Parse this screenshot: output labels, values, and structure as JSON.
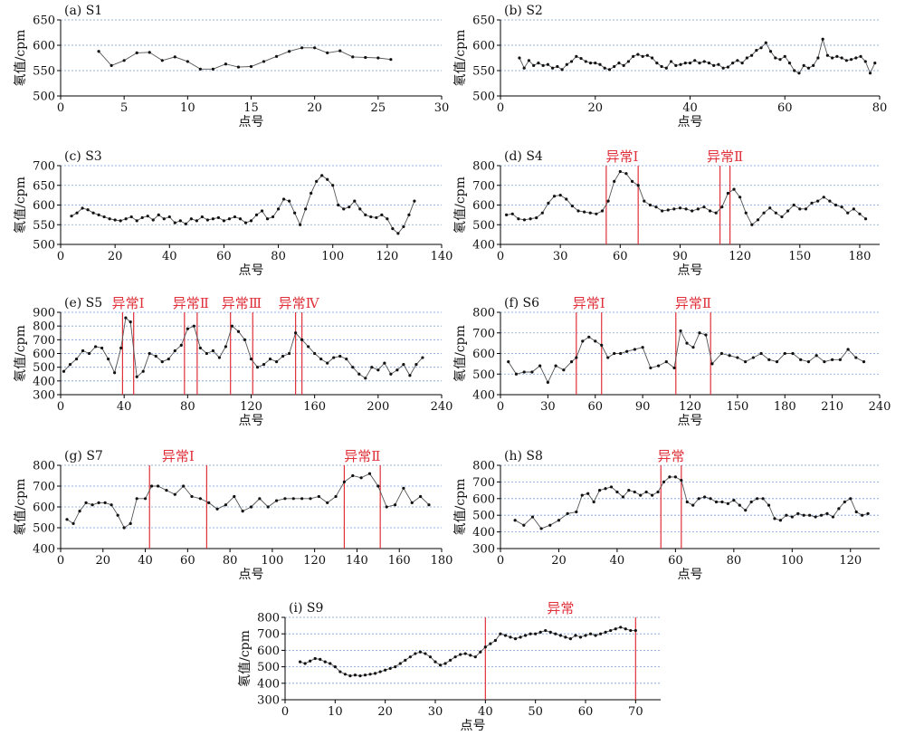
{
  "chart_data": [
    {
      "type": "line",
      "title": "(a) S1",
      "xlabel": "点号",
      "ylabel": "氡值/cpm",
      "xlim": [
        0,
        30
      ],
      "ylim": [
        500,
        650
      ],
      "xticks": [
        0,
        5,
        10,
        15,
        20,
        25,
        30
      ],
      "yticks": [
        500,
        550,
        600,
        650
      ],
      "grid": true,
      "x": [
        3,
        4,
        5,
        6,
        7,
        8,
        9,
        10,
        11,
        12,
        13,
        14,
        15,
        16,
        17,
        18,
        19,
        20,
        21,
        22,
        23,
        24,
        25,
        26
      ],
      "values": [
        588,
        560,
        570,
        585,
        586,
        570,
        577,
        568,
        553,
        553,
        563,
        557,
        558,
        568,
        578,
        588,
        595,
        595,
        585,
        589,
        577,
        576,
        575,
        572
      ],
      "anomalies": []
    },
    {
      "type": "line",
      "title": "(b) S2",
      "xlabel": "点号",
      "ylabel": "氡值/cpm",
      "xlim": [
        0,
        80
      ],
      "ylim": [
        500,
        650
      ],
      "xticks": [
        0,
        20,
        40,
        60,
        80
      ],
      "yticks": [
        500,
        550,
        600,
        650
      ],
      "grid": true,
      "x": [
        4,
        5,
        6,
        7,
        8,
        9,
        10,
        11,
        12,
        13,
        14,
        15,
        16,
        17,
        18,
        19,
        20,
        21,
        22,
        23,
        24,
        25,
        26,
        27,
        28,
        29,
        30,
        31,
        32,
        33,
        34,
        35,
        36,
        37,
        38,
        39,
        40,
        41,
        42,
        43,
        44,
        45,
        46,
        47,
        48,
        49,
        50,
        51,
        52,
        53,
        54,
        55,
        56,
        57,
        58,
        59,
        60,
        61,
        62,
        63,
        64,
        65,
        66,
        67,
        68,
        69,
        70,
        71,
        72,
        73,
        74,
        75,
        76,
        77,
        78,
        79
      ],
      "values": [
        575,
        555,
        570,
        560,
        565,
        560,
        562,
        555,
        558,
        552,
        562,
        568,
        578,
        574,
        568,
        565,
        565,
        562,
        555,
        552,
        558,
        565,
        560,
        568,
        578,
        582,
        578,
        580,
        575,
        565,
        558,
        555,
        568,
        560,
        562,
        565,
        565,
        570,
        565,
        568,
        565,
        560,
        562,
        555,
        557,
        565,
        570,
        565,
        575,
        580,
        590,
        595,
        605,
        588,
        575,
        572,
        578,
        565,
        550,
        545,
        560,
        555,
        560,
        575,
        612,
        580,
        575,
        578,
        575,
        570,
        572,
        575,
        578,
        568,
        545,
        565
      ],
      "anomalies": []
    },
    {
      "type": "line",
      "title": "(c) S3",
      "xlabel": "点号",
      "ylabel": "氡值/cpm",
      "xlim": [
        0,
        140
      ],
      "ylim": [
        500,
        700
      ],
      "xticks": [
        0,
        20,
        40,
        60,
        80,
        100,
        120,
        140
      ],
      "yticks": [
        500,
        550,
        600,
        650,
        700
      ],
      "grid": true,
      "x": [
        4,
        6,
        8,
        10,
        12,
        14,
        16,
        18,
        20,
        22,
        24,
        26,
        28,
        30,
        32,
        34,
        36,
        38,
        40,
        42,
        44,
        46,
        48,
        50,
        52,
        54,
        56,
        58,
        60,
        62,
        64,
        66,
        68,
        70,
        72,
        74,
        76,
        78,
        80,
        82,
        84,
        86,
        88,
        90,
        92,
        94,
        96,
        98,
        100,
        102,
        104,
        106,
        108,
        110,
        112,
        114,
        116,
        118,
        120,
        122,
        124,
        126,
        128,
        130
      ],
      "values": [
        572,
        580,
        592,
        588,
        580,
        575,
        570,
        565,
        562,
        560,
        565,
        570,
        560,
        568,
        572,
        562,
        575,
        565,
        570,
        555,
        560,
        552,
        565,
        560,
        570,
        562,
        565,
        568,
        560,
        565,
        570,
        565,
        555,
        560,
        575,
        585,
        565,
        570,
        590,
        615,
        610,
        580,
        550,
        590,
        630,
        660,
        675,
        665,
        650,
        600,
        590,
        595,
        610,
        590,
        575,
        570,
        568,
        575,
        565,
        540,
        528,
        545,
        575,
        610
      ],
      "anomalies": []
    },
    {
      "type": "line",
      "title": "(d) S4",
      "xlabel": "点号",
      "ylabel": "氡值/cpm",
      "xlim": [
        0,
        190
      ],
      "ylim": [
        400,
        800
      ],
      "xticks": [
        0,
        30,
        60,
        90,
        120,
        150,
        180
      ],
      "yticks": [
        400,
        500,
        600,
        700,
        800
      ],
      "grid": true,
      "x": [
        3,
        6,
        9,
        12,
        15,
        18,
        21,
        24,
        27,
        30,
        33,
        36,
        39,
        42,
        45,
        48,
        51,
        54,
        57,
        60,
        63,
        66,
        69,
        72,
        75,
        78,
        81,
        84,
        87,
        90,
        93,
        96,
        99,
        102,
        105,
        108,
        111,
        114,
        117,
        120,
        123,
        126,
        129,
        132,
        135,
        138,
        141,
        144,
        147,
        150,
        153,
        156,
        159,
        162,
        165,
        168,
        171,
        174,
        177,
        180,
        183
      ],
      "values": [
        550,
        555,
        530,
        525,
        530,
        535,
        560,
        610,
        645,
        650,
        630,
        595,
        570,
        565,
        560,
        555,
        570,
        620,
        720,
        770,
        760,
        720,
        700,
        620,
        600,
        590,
        570,
        575,
        580,
        585,
        580,
        570,
        580,
        590,
        570,
        560,
        590,
        660,
        680,
        640,
        560,
        500,
        525,
        560,
        585,
        560,
        540,
        570,
        600,
        580,
        580,
        610,
        620,
        640,
        620,
        600,
        590,
        560,
        580,
        555,
        530
      ],
      "anomalies": [
        {
          "label": "异常Ⅰ",
          "x_start": 53,
          "x_end": 69
        },
        {
          "label": "异常Ⅱ",
          "x_start": 110,
          "x_end": 115
        }
      ]
    },
    {
      "type": "line",
      "title": "(e) S5",
      "xlabel": "点号",
      "ylabel": "氡值/cpm",
      "xlim": [
        0,
        240
      ],
      "ylim": [
        300,
        900
      ],
      "xticks": [
        0,
        40,
        80,
        120,
        160,
        200,
        240
      ],
      "yticks": [
        300,
        400,
        500,
        600,
        700,
        800,
        900
      ],
      "grid": true,
      "x": [
        2,
        6,
        10,
        14,
        18,
        22,
        26,
        30,
        34,
        38,
        41,
        44,
        48,
        52,
        56,
        60,
        64,
        68,
        72,
        76,
        80,
        84,
        88,
        92,
        96,
        100,
        104,
        108,
        112,
        116,
        120,
        124,
        128,
        132,
        136,
        140,
        144,
        148,
        152,
        156,
        160,
        164,
        168,
        172,
        176,
        180,
        184,
        188,
        192,
        196,
        200,
        204,
        208,
        212,
        216,
        220,
        224,
        228
      ],
      "values": [
        470,
        520,
        560,
        620,
        600,
        650,
        640,
        560,
        460,
        640,
        860,
        830,
        430,
        470,
        600,
        580,
        540,
        560,
        620,
        660,
        780,
        800,
        640,
        600,
        620,
        570,
        650,
        800,
        760,
        700,
        560,
        500,
        520,
        560,
        540,
        580,
        600,
        750,
        700,
        650,
        600,
        560,
        530,
        570,
        580,
        560,
        500,
        450,
        420,
        500,
        480,
        530,
        450,
        480,
        520,
        440,
        520,
        570
      ],
      "anomalies": [
        {
          "label": "异常Ⅰ",
          "x_start": 39,
          "x_end": 46
        },
        {
          "label": "异常Ⅱ",
          "x_start": 78,
          "x_end": 86
        },
        {
          "label": "异常Ⅲ",
          "x_start": 107,
          "x_end": 121
        },
        {
          "label": "异常Ⅳ",
          "x_start": 148,
          "x_end": 152
        }
      ]
    },
    {
      "type": "line",
      "title": "(f) S6",
      "xlabel": "点号",
      "ylabel": "氡值/cpm",
      "xlim": [
        0,
        240
      ],
      "ylim": [
        400,
        800
      ],
      "xticks": [
        0,
        30,
        60,
        90,
        120,
        150,
        180,
        210,
        240
      ],
      "yticks": [
        400,
        500,
        600,
        700,
        800
      ],
      "grid": true,
      "x": [
        5,
        10,
        15,
        20,
        25,
        30,
        35,
        40,
        45,
        48,
        52,
        56,
        60,
        64,
        68,
        72,
        76,
        80,
        85,
        90,
        95,
        100,
        105,
        110,
        114,
        118,
        122,
        126,
        130,
        134,
        140,
        145,
        150,
        155,
        160,
        165,
        170,
        175,
        180,
        185,
        190,
        195,
        200,
        205,
        210,
        215,
        220,
        225,
        230
      ],
      "values": [
        560,
        500,
        510,
        510,
        540,
        460,
        540,
        520,
        560,
        580,
        660,
        680,
        660,
        640,
        580,
        600,
        600,
        610,
        620,
        630,
        530,
        540,
        560,
        530,
        710,
        650,
        630,
        700,
        690,
        550,
        600,
        590,
        580,
        560,
        580,
        600,
        570,
        560,
        600,
        600,
        570,
        560,
        590,
        560,
        570,
        570,
        620,
        580,
        560
      ],
      "anomalies": [
        {
          "label": "异常Ⅰ",
          "x_start": 48,
          "x_end": 64
        },
        {
          "label": "异常Ⅱ",
          "x_start": 111,
          "x_end": 133
        }
      ]
    },
    {
      "type": "line",
      "title": "(g) S7",
      "xlabel": "点号",
      "ylabel": "氡值/cpm",
      "xlim": [
        0,
        180
      ],
      "ylim": [
        400,
        800
      ],
      "xticks": [
        0,
        20,
        40,
        60,
        80,
        100,
        120,
        140,
        160,
        180
      ],
      "yticks": [
        400,
        500,
        600,
        700,
        800
      ],
      "grid": true,
      "x": [
        3,
        6,
        9,
        12,
        15,
        18,
        21,
        24,
        27,
        30,
        33,
        36,
        40,
        43,
        46,
        50,
        54,
        58,
        62,
        66,
        70,
        74,
        78,
        82,
        86,
        90,
        94,
        98,
        102,
        106,
        110,
        114,
        118,
        122,
        126,
        130,
        134,
        138,
        142,
        146,
        150,
        154,
        158,
        162,
        166,
        170,
        174
      ],
      "values": [
        540,
        520,
        580,
        620,
        610,
        620,
        620,
        610,
        560,
        500,
        520,
        640,
        640,
        700,
        700,
        680,
        660,
        700,
        650,
        640,
        620,
        590,
        610,
        650,
        580,
        600,
        640,
        600,
        630,
        640,
        640,
        640,
        640,
        650,
        620,
        650,
        720,
        750,
        740,
        760,
        700,
        600,
        610,
        690,
        620,
        650,
        610
      ],
      "anomalies": [
        {
          "label": "异常Ⅰ",
          "x_start": 42,
          "x_end": 69
        },
        {
          "label": "异常Ⅱ",
          "x_start": 134,
          "x_end": 151
        }
      ]
    },
    {
      "type": "line",
      "title": "(h) S8",
      "xlabel": "点号",
      "ylabel": "氡值/cpm",
      "xlim": [
        0,
        130
      ],
      "ylim": [
        300,
        800
      ],
      "xticks": [
        0,
        20,
        40,
        60,
        80,
        100,
        120
      ],
      "yticks": [
        300,
        400,
        500,
        600,
        700,
        800
      ],
      "grid": true,
      "x": [
        5,
        8,
        11,
        14,
        17,
        20,
        23,
        26,
        28,
        30,
        32,
        34,
        36,
        38,
        40,
        42,
        44,
        46,
        48,
        50,
        52,
        54,
        56,
        58,
        60,
        62,
        64,
        66,
        68,
        70,
        72,
        74,
        76,
        78,
        80,
        82,
        84,
        86,
        88,
        90,
        92,
        94,
        96,
        98,
        100,
        102,
        104,
        106,
        108,
        110,
        112,
        114,
        116,
        118,
        120,
        122,
        124,
        126
      ],
      "values": [
        470,
        440,
        490,
        420,
        440,
        470,
        510,
        520,
        620,
        630,
        580,
        650,
        660,
        670,
        640,
        610,
        650,
        640,
        620,
        640,
        620,
        640,
        700,
        730,
        730,
        710,
        580,
        560,
        600,
        610,
        600,
        580,
        580,
        570,
        590,
        560,
        530,
        580,
        600,
        600,
        560,
        480,
        470,
        500,
        490,
        510,
        500,
        500,
        490,
        500,
        510,
        490,
        540,
        580,
        600,
        520,
        500,
        510
      ],
      "anomalies": [
        {
          "label": "异常",
          "x_start": 55,
          "x_end": 62
        }
      ]
    },
    {
      "type": "line",
      "title": "(i) S9",
      "xlabel": "点号",
      "ylabel": "氡值/cpm",
      "xlim": [
        0,
        75
      ],
      "ylim": [
        300,
        800
      ],
      "xticks": [
        0,
        10,
        20,
        30,
        40,
        50,
        60,
        70
      ],
      "yticks": [
        300,
        400,
        500,
        600,
        700,
        800
      ],
      "grid": true,
      "x": [
        3,
        4,
        5,
        6,
        7,
        8,
        9,
        10,
        11,
        12,
        13,
        14,
        15,
        16,
        17,
        18,
        19,
        20,
        21,
        22,
        23,
        24,
        25,
        26,
        27,
        28,
        29,
        30,
        31,
        32,
        33,
        34,
        35,
        36,
        37,
        38,
        39,
        40,
        41,
        42,
        43,
        44,
        45,
        46,
        47,
        48,
        49,
        50,
        51,
        52,
        53,
        54,
        55,
        56,
        57,
        58,
        59,
        60,
        61,
        62,
        63,
        64,
        65,
        66,
        67,
        68,
        69,
        70
      ],
      "values": [
        530,
        520,
        535,
        550,
        545,
        530,
        520,
        500,
        470,
        455,
        445,
        450,
        445,
        450,
        455,
        460,
        470,
        480,
        490,
        500,
        520,
        540,
        560,
        580,
        590,
        580,
        560,
        530,
        510,
        520,
        540,
        560,
        575,
        580,
        570,
        560,
        590,
        620,
        640,
        660,
        700,
        690,
        680,
        670,
        680,
        690,
        700,
        700,
        710,
        720,
        710,
        700,
        690,
        680,
        670,
        690,
        680,
        690,
        700,
        690,
        700,
        710,
        720,
        730,
        740,
        730,
        720,
        720
      ],
      "anomalies": [
        {
          "label": "异常",
          "x_start": 40,
          "x_end": 70
        }
      ]
    }
  ],
  "colors": {
    "line": "#555555",
    "marker": "#111111",
    "grid": "#7a9fd6",
    "anomaly": "#e0303a",
    "axis": "#000000"
  }
}
